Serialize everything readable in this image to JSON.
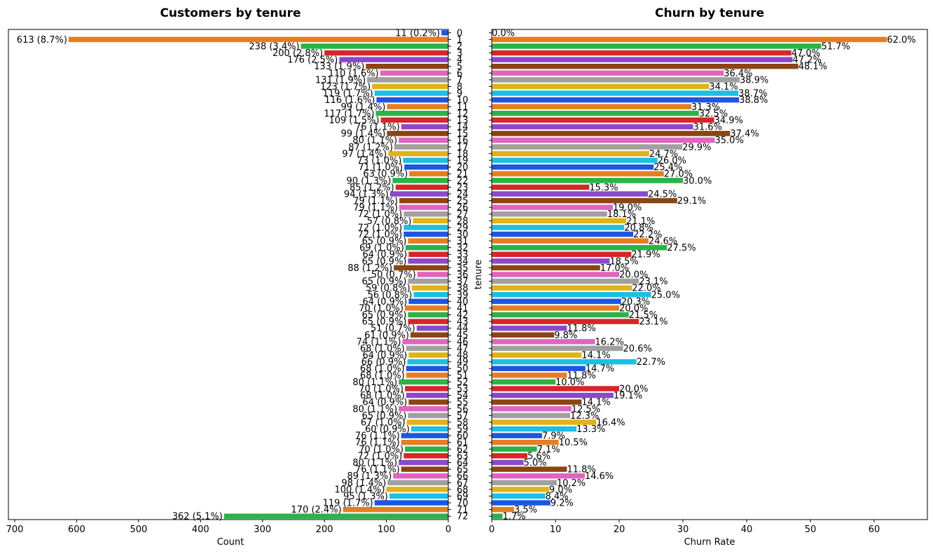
{
  "chart_data": [
    {
      "type": "bar",
      "orientation": "horizontal",
      "title": "Customers by tenure",
      "xlabel": "Count",
      "ylabel": "",
      "xlim": [
        700,
        0
      ],
      "x_inverted": true,
      "xticks": [
        700,
        600,
        500,
        400,
        300,
        200,
        100,
        0
      ],
      "categories": [
        0,
        1,
        2,
        3,
        4,
        5,
        6,
        7,
        8,
        9,
        10,
        11,
        12,
        13,
        14,
        15,
        16,
        17,
        18,
        19,
        20,
        21,
        22,
        23,
        24,
        25,
        26,
        27,
        28,
        29,
        30,
        31,
        32,
        33,
        34,
        35,
        36,
        37,
        38,
        39,
        40,
        41,
        42,
        43,
        44,
        45,
        46,
        47,
        48,
        49,
        50,
        51,
        52,
        53,
        54,
        55,
        56,
        57,
        58,
        59,
        60,
        61,
        62,
        63,
        64,
        65,
        66,
        67,
        68,
        69,
        70,
        71,
        72
      ],
      "values": [
        11,
        613,
        238,
        200,
        176,
        133,
        110,
        131,
        123,
        119,
        116,
        99,
        117,
        109,
        76,
        99,
        80,
        87,
        97,
        73,
        71,
        63,
        90,
        85,
        94,
        79,
        79,
        72,
        57,
        72,
        72,
        65,
        69,
        64,
        65,
        88,
        50,
        65,
        59,
        56,
        64,
        70,
        65,
        65,
        51,
        61,
        74,
        68,
        64,
        66,
        68,
        68,
        80,
        70,
        68,
        64,
        80,
        65,
        67,
        60,
        76,
        76,
        70,
        72,
        80,
        76,
        89,
        98,
        100,
        95,
        119,
        170,
        362
      ],
      "data_labels": [
        "11 (0.2%)",
        "613 (8.7%)",
        "238 (3.4%)",
        "200 (2.8%)",
        "176 (2.5%)",
        "133 (1.9%)",
        "110 (1.6%)",
        "131 (1.9%)",
        "123 (1.7%)",
        "119 (1.7%)",
        "116 (1.6%)",
        "99 (1.4%)",
        "117 (1.7%)",
        "109 (1.5%)",
        "76 (1.1%)",
        "99 (1.4%)",
        "80 (1.1%)",
        "87 (1.2%)",
        "97 (1.4%)",
        "73 (1.0%)",
        "71 (1.0%)",
        "63 (0.9%)",
        "90 (1.3%)",
        "85 (1.2%)",
        "94 (1.3%)",
        "79 (1.1%)",
        "79 (1.1%)",
        "72 (1.0%)",
        "57 (0.8%)",
        "72 (1.0%)",
        "72 (1.0%)",
        "65 (0.9%)",
        "69 (1.0%)",
        "64 (0.9%)",
        "65 (0.9%)",
        "88 (1.2%)",
        "50 (0.7%)",
        "65 (0.9%)",
        "59 (0.8%)",
        "56 (0.8%)",
        "64 (0.9%)",
        "70 (1.0%)",
        "65 (0.9%)",
        "65 (0.9%)",
        "51 (0.7%)",
        "61 (0.9%)",
        "74 (1.1%)",
        "68 (1.0%)",
        "64 (0.9%)",
        "66 (0.9%)",
        "68 (1.0%)",
        "68 (1.0%)",
        "80 (1.1%)",
        "70 (1.0%)",
        "68 (1.0%)",
        "64 (0.9%)",
        "80 (1.1%)",
        "65 (0.9%)",
        "67 (1.0%)",
        "60 (0.9%)",
        "76 (1.1%)",
        "76 (1.1%)",
        "70 (1.0%)",
        "72 (1.0%)",
        "80 (1.1%)",
        "76 (1.1%)",
        "89 (1.3%)",
        "98 (1.4%)",
        "100 (1.4%)",
        "95 (1.3%)",
        "119 (1.7%)",
        "170 (2.4%)",
        "362 (5.1%)"
      ]
    },
    {
      "type": "bar",
      "orientation": "horizontal",
      "title": "Churn by tenure",
      "xlabel": "Churn Rate",
      "ylabel": "tenure",
      "xlim": [
        0,
        68
      ],
      "xticks": [
        0,
        10,
        20,
        30,
        40,
        50,
        60
      ],
      "categories": [
        0,
        1,
        2,
        3,
        4,
        5,
        6,
        7,
        8,
        9,
        10,
        11,
        12,
        13,
        14,
        15,
        16,
        17,
        18,
        19,
        20,
        21,
        22,
        23,
        24,
        25,
        26,
        27,
        28,
        29,
        30,
        31,
        32,
        33,
        34,
        35,
        36,
        37,
        38,
        39,
        40,
        41,
        42,
        43,
        44,
        45,
        46,
        47,
        48,
        49,
        50,
        51,
        52,
        53,
        54,
        55,
        56,
        57,
        58,
        59,
        60,
        61,
        62,
        63,
        64,
        65,
        66,
        67,
        68,
        69,
        70,
        71,
        72
      ],
      "values": [
        0.0,
        62.0,
        51.7,
        47.0,
        47.2,
        48.1,
        36.4,
        38.9,
        34.1,
        38.7,
        38.8,
        31.3,
        32.5,
        34.9,
        31.6,
        37.4,
        35.0,
        29.9,
        24.7,
        26.0,
        25.4,
        27.0,
        30.0,
        15.3,
        24.5,
        29.1,
        19.0,
        18.1,
        21.1,
        20.8,
        22.2,
        24.6,
        27.5,
        21.9,
        18.5,
        17.0,
        20.0,
        23.1,
        22.0,
        25.0,
        20.3,
        20.0,
        21.5,
        23.1,
        11.8,
        9.8,
        16.2,
        20.6,
        14.1,
        22.7,
        14.7,
        11.8,
        10.0,
        20.0,
        19.1,
        14.1,
        12.5,
        12.3,
        16.4,
        13.3,
        7.9,
        10.5,
        7.1,
        5.6,
        5.0,
        11.8,
        14.6,
        10.2,
        9.0,
        8.4,
        9.2,
        3.5,
        1.7
      ],
      "data_labels": [
        "0.0%",
        "62.0%",
        "51.7%",
        "47.0%",
        "47.2%",
        "48.1%",
        "36.4%",
        "38.9%",
        "34.1%",
        "38.7%",
        "38.8%",
        "31.3%",
        "32.5%",
        "34.9%",
        "31.6%",
        "37.4%",
        "35.0%",
        "29.9%",
        "24.7%",
        "26.0%",
        "25.4%",
        "27.0%",
        "30.0%",
        "15.3%",
        "24.5%",
        "29.1%",
        "19.0%",
        "18.1%",
        "21.1%",
        "20.8%",
        "22.2%",
        "24.6%",
        "27.5%",
        "21.9%",
        "18.5%",
        "17.0%",
        "20.0%",
        "23.1%",
        "22.0%",
        "25.0%",
        "20.3%",
        "20.0%",
        "21.5%",
        "23.1%",
        "11.8%",
        "9.8%",
        "16.2%",
        "20.6%",
        "14.1%",
        "22.7%",
        "14.7%",
        "11.8%",
        "10.0%",
        "20.0%",
        "19.1%",
        "14.1%",
        "12.5%",
        "12.3%",
        "16.4%",
        "13.3%",
        "7.9%",
        "10.5%",
        "7.1%",
        "5.6%",
        "5.0%",
        "11.8%",
        "14.6%",
        "10.2%",
        "9.0%",
        "8.4%",
        "9.2%",
        "3.5%",
        "1.7%"
      ]
    }
  ],
  "palette": [
    "#1f55e0",
    "#e67e22",
    "#2db14a",
    "#d62628",
    "#8b49c9",
    "#8b4513",
    "#e164c0",
    "#a0a0a0",
    "#e2b21b",
    "#1dbfe3"
  ]
}
